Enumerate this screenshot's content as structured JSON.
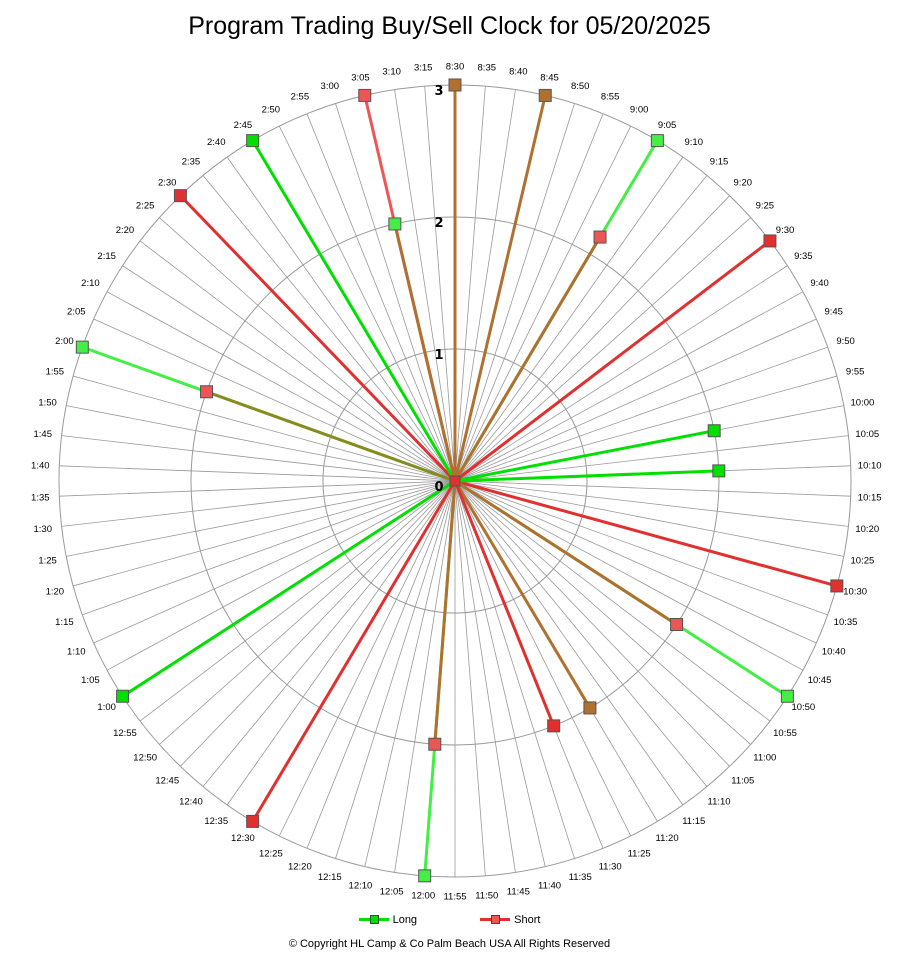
{
  "title": "Program Trading Buy/Sell Clock  for  05/20/2025",
  "copyright": "© Copyright  HL Camp & Co  Palm Beach  USA  All Rights Reserved",
  "colors": {
    "long": "#00e000",
    "long_light": "#44ee44",
    "short": "#e03030",
    "short_light": "#ee5555",
    "neutral": "#b07030",
    "olive": "#8a8a20",
    "grid": "#999999"
  },
  "chart_data": {
    "type": "polar-radar",
    "title": "Program Trading Buy/Sell Clock  for  05/20/2025",
    "radial_ticks": [
      "0",
      "1",
      "2",
      "3"
    ],
    "rmax": 3,
    "time_labels": [
      "8:30",
      "8:35",
      "8:40",
      "8:45",
      "8:50",
      "8:55",
      "9:00",
      "9:05",
      "9:10",
      "9:15",
      "9:20",
      "9:25",
      "9:30",
      "9:35",
      "9:40",
      "9:45",
      "9:50",
      "9:55",
      "10:00",
      "10:05",
      "10:10",
      "10:15",
      "10:20",
      "10:25",
      "10:30",
      "10:35",
      "10:40",
      "10:45",
      "10:50",
      "10:55",
      "11:00",
      "11:05",
      "11:10",
      "11:15",
      "11:20",
      "11:25",
      "11:30",
      "11:35",
      "11:40",
      "11:45",
      "11:50",
      "11:55",
      "12:00",
      "12:05",
      "12:10",
      "12:15",
      "12:20",
      "12:25",
      "12:30",
      "12:35",
      "12:40",
      "12:45",
      "12:50",
      "12:55",
      "1:00",
      "1:05",
      "1:10",
      "1:15",
      "1:20",
      "1:25",
      "1:30",
      "1:35",
      "1:40",
      "1:45",
      "1:50",
      "1:55",
      "2:00",
      "2:05",
      "2:10",
      "2:15",
      "2:20",
      "2:25",
      "2:30",
      "2:35",
      "2:40",
      "2:45",
      "2:50",
      "2:55",
      "3:00",
      "3:05",
      "3:10",
      "3:15"
    ],
    "legend": [
      {
        "name": "Long",
        "color": "#00e000"
      },
      {
        "name": "Short",
        "color": "#e03030"
      }
    ],
    "spokes": [
      {
        "time": "8:30",
        "value": 3.0,
        "line": "neutral",
        "marker": "neutral"
      },
      {
        "time": "8:45",
        "value": 3.0,
        "line": "neutral",
        "marker": "neutral"
      },
      {
        "time": "9:05",
        "value": 2.15,
        "line": "neutral",
        "marker": "short_light"
      },
      {
        "time": "9:05",
        "value": 3.0,
        "line": "long_light",
        "marker": "long_light"
      },
      {
        "time": "9:30",
        "value": 3.0,
        "line": "short",
        "marker": "short"
      },
      {
        "time": "10:00",
        "value": 2.0,
        "line": "long",
        "marker": "long"
      },
      {
        "time": "10:10",
        "value": 2.0,
        "line": "long",
        "marker": "long"
      },
      {
        "time": "10:30",
        "value": 3.0,
        "line": "short",
        "marker": "short"
      },
      {
        "time": "10:50",
        "value": 2.0,
        "line": "neutral",
        "marker": "short_light"
      },
      {
        "time": "10:50",
        "value": 3.0,
        "line": "long_light",
        "marker": "long_light"
      },
      {
        "time": "11:20",
        "value": 2.0,
        "line": "neutral",
        "marker": "neutral"
      },
      {
        "time": "11:30",
        "value": 2.0,
        "line": "short",
        "marker": "short"
      },
      {
        "time": "12:00",
        "value": 2.0,
        "line": "neutral",
        "marker": "short_light"
      },
      {
        "time": "12:00",
        "value": 3.0,
        "line": "long_light",
        "marker": "long_light"
      },
      {
        "time": "12:30",
        "value": 3.0,
        "line": "short",
        "marker": "short"
      },
      {
        "time": "1:00",
        "value": 3.0,
        "line": "long",
        "marker": "long"
      },
      {
        "time": "2:00",
        "value": 2.0,
        "line": "olive",
        "marker": "short_light"
      },
      {
        "time": "2:00",
        "value": 3.0,
        "line": "long_light",
        "marker": "long_light"
      },
      {
        "time": "2:30",
        "value": 3.0,
        "line": "short",
        "marker": "short"
      },
      {
        "time": "2:45",
        "value": 3.0,
        "line": "long",
        "marker": "long"
      },
      {
        "time": "3:05",
        "value": 2.0,
        "line": "neutral",
        "marker": "long_light"
      },
      {
        "time": "3:05",
        "value": 3.0,
        "line": "short_light",
        "marker": "short_light"
      }
    ]
  }
}
